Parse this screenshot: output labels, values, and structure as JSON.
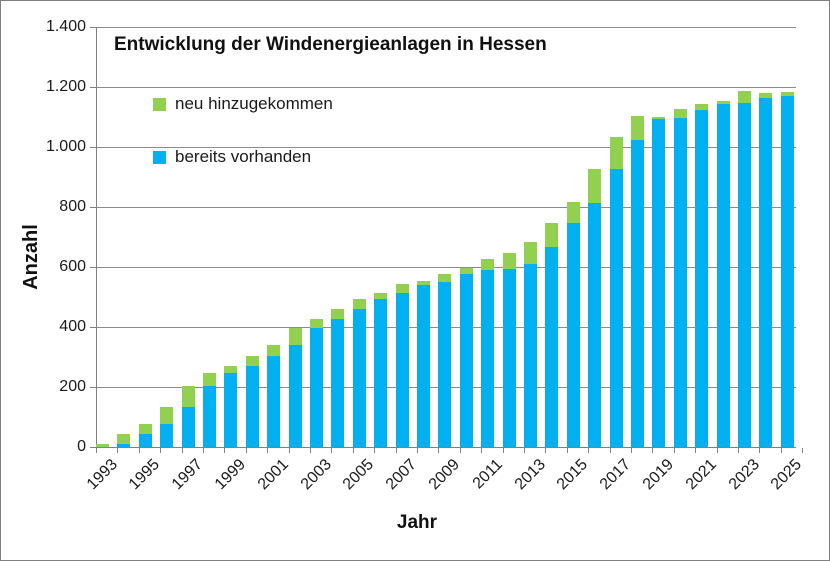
{
  "chart": {
    "title": "Entwicklung der Windenergieanlagen in Hessen",
    "legend": [
      {
        "label": "neu hinzugekommen",
        "color": "#92D050"
      },
      {
        "label": "bereits vorhanden",
        "color": "#00B0F0"
      }
    ],
    "x_axis": {
      "label": "Jahr",
      "tick_labels": [
        "1993",
        "1995",
        "1997",
        "1999",
        "2001",
        "2003",
        "2005",
        "2007",
        "2009",
        "2011",
        "2013",
        "2015",
        "2017",
        "2019",
        "2021",
        "2023",
        "2025"
      ]
    },
    "y_axis": {
      "label": "Anzahl",
      "tick_labels": [
        "0",
        "200",
        "400",
        "600",
        "800",
        "1.000",
        "1.200",
        "1.400"
      ],
      "min": 0,
      "max": 1400,
      "step": 200
    }
  },
  "chart_data": {
    "type": "bar",
    "stacked": true,
    "title": "Entwicklung der Windenergieanlagen in Hessen",
    "xlabel": "Jahr",
    "ylabel": "Anzahl",
    "ylim": [
      0,
      1400
    ],
    "grid": true,
    "legend_position": "inside-top-left",
    "categories": [
      1993,
      1994,
      1995,
      1996,
      1997,
      1998,
      1999,
      2000,
      2001,
      2002,
      2003,
      2004,
      2005,
      2006,
      2007,
      2008,
      2009,
      2010,
      2011,
      2012,
      2013,
      2014,
      2015,
      2016,
      2017,
      2018,
      2019,
      2020,
      2021,
      2022,
      2023,
      2024,
      2025
    ],
    "series": [
      {
        "name": "bereits vorhanden",
        "color": "#00B0F0",
        "values": [
          1,
          9,
          42,
          78,
          134,
          203,
          247,
          270,
          303,
          340,
          396,
          428,
          461,
          492,
          514,
          540,
          550,
          576,
          590,
          593,
          611,
          667,
          748,
          814,
          926,
          1022,
          1095,
          1098,
          1123,
          1143,
          1147,
          1163,
          1170
        ]
      },
      {
        "name": "neu hinzugekommen",
        "color": "#92D050",
        "values": [
          8,
          33,
          36,
          56,
          69,
          44,
          23,
          33,
          37,
          56,
          32,
          33,
          31,
          22,
          28,
          13,
          28,
          21,
          38,
          53,
          73,
          81,
          69,
          112,
          106,
          82,
          5,
          30,
          22,
          10,
          40,
          17,
          13
        ]
      }
    ]
  }
}
